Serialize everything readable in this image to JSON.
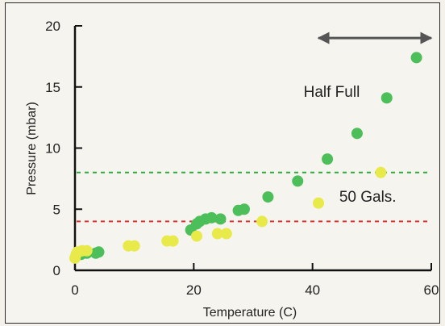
{
  "chart_data": {
    "type": "scatter",
    "title": "",
    "xlabel": "Temperature (C)",
    "ylabel": "Pressure (mbar)",
    "xlim": [
      0,
      60
    ],
    "ylim": [
      0,
      20
    ],
    "xticks": [
      0,
      20,
      40,
      60
    ],
    "yticks": [
      0,
      5,
      10,
      15,
      20
    ],
    "grid": false,
    "series": [
      {
        "name": "Half Full",
        "color": "#4cbf5a",
        "points": [
          [
            0.3,
            1.2
          ],
          [
            1.0,
            1.3
          ],
          [
            2.0,
            1.4
          ],
          [
            3.5,
            1.4
          ],
          [
            4.0,
            1.5
          ],
          [
            19.5,
            3.3
          ],
          [
            20.5,
            3.8
          ],
          [
            21.0,
            4.0
          ],
          [
            22.0,
            4.2
          ],
          [
            23.0,
            4.3
          ],
          [
            24.5,
            4.2
          ],
          [
            27.5,
            4.9
          ],
          [
            28.5,
            5.0
          ],
          [
            32.5,
            6.0
          ],
          [
            37.5,
            7.3
          ],
          [
            42.5,
            9.1
          ],
          [
            47.5,
            11.2
          ],
          [
            52.5,
            14.1
          ],
          [
            57.5,
            17.4
          ]
        ]
      },
      {
        "name": "50 Gals.",
        "color": "#e8ea4a",
        "points": [
          [
            0.0,
            1.0
          ],
          [
            0.2,
            1.3
          ],
          [
            0.4,
            1.5
          ],
          [
            1.2,
            1.6
          ],
          [
            2.0,
            1.6
          ],
          [
            9.0,
            2.0
          ],
          [
            10.0,
            2.0
          ],
          [
            15.5,
            2.4
          ],
          [
            16.5,
            2.4
          ],
          [
            20.5,
            2.8
          ],
          [
            24.0,
            3.0
          ],
          [
            25.5,
            3.0
          ],
          [
            31.5,
            4.0
          ],
          [
            41.0,
            5.5
          ],
          [
            51.5,
            8.0
          ]
        ]
      }
    ],
    "reference_lines": [
      {
        "y": 8,
        "color": "#2faa3c",
        "style": "dashed"
      },
      {
        "y": 4,
        "color": "#e03030",
        "style": "dashed"
      }
    ],
    "annotations": [
      {
        "text": "Half Full",
        "x": 38.5,
        "y": 14.2
      },
      {
        "text": "50 Gals.",
        "x": 44.5,
        "y": 5.6
      }
    ],
    "range_arrow": {
      "x_from": 41,
      "x_to": 60,
      "y": 19.0,
      "color": "#555555"
    }
  }
}
